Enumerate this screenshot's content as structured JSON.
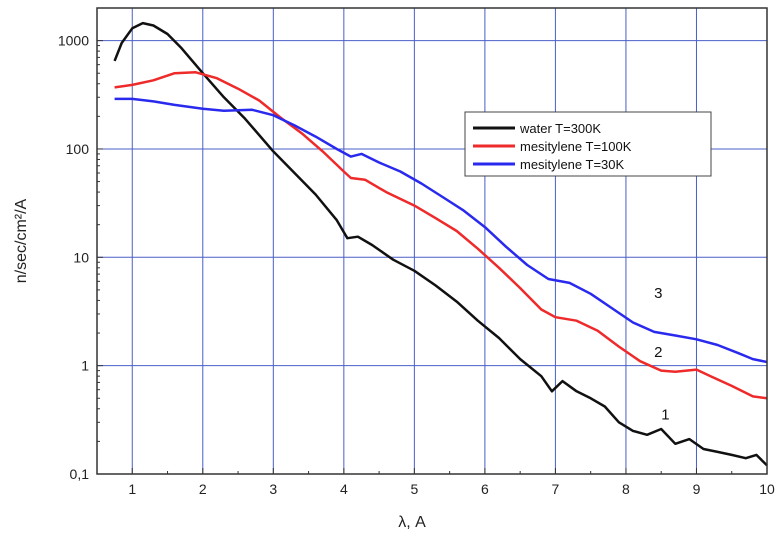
{
  "chart_data": {
    "type": "line",
    "xlabel": "λ, A",
    "ylabel": "n/sec/cm²/A",
    "xlim": [
      0.5,
      10
    ],
    "ylim": [
      0.1,
      2000
    ],
    "yscale": "log",
    "grid": true,
    "legend_position": "top-right",
    "x_ticks": [
      1,
      2,
      3,
      4,
      5,
      6,
      7,
      8,
      9,
      10
    ],
    "y_ticks": [
      {
        "value": 0.1,
        "label": "0,1"
      },
      {
        "value": 1,
        "label": "1"
      },
      {
        "value": 10,
        "label": "10"
      },
      {
        "value": 100,
        "label": "100"
      },
      {
        "value": 1000,
        "label": "1000"
      }
    ],
    "series": [
      {
        "name": "water T=300K",
        "color": "#111111",
        "curve_label": "1",
        "label_at": [
          8.5,
          0.32
        ],
        "points": [
          [
            0.75,
            650
          ],
          [
            0.85,
            950
          ],
          [
            1.0,
            1300
          ],
          [
            1.15,
            1450
          ],
          [
            1.3,
            1380
          ],
          [
            1.5,
            1150
          ],
          [
            1.7,
            850
          ],
          [
            2.0,
            500
          ],
          [
            2.3,
            300
          ],
          [
            2.6,
            190
          ],
          [
            3.0,
            95
          ],
          [
            3.3,
            60
          ],
          [
            3.6,
            38
          ],
          [
            3.9,
            22
          ],
          [
            4.05,
            15
          ],
          [
            4.2,
            15.5
          ],
          [
            4.4,
            13
          ],
          [
            4.7,
            9.5
          ],
          [
            5.0,
            7.5
          ],
          [
            5.3,
            5.5
          ],
          [
            5.6,
            3.9
          ],
          [
            5.9,
            2.6
          ],
          [
            6.2,
            1.8
          ],
          [
            6.5,
            1.15
          ],
          [
            6.8,
            0.8
          ],
          [
            6.95,
            0.58
          ],
          [
            7.1,
            0.72
          ],
          [
            7.3,
            0.58
          ],
          [
            7.5,
            0.5
          ],
          [
            7.7,
            0.42
          ],
          [
            7.9,
            0.3
          ],
          [
            8.1,
            0.25
          ],
          [
            8.3,
            0.23
          ],
          [
            8.5,
            0.26
          ],
          [
            8.7,
            0.19
          ],
          [
            8.9,
            0.21
          ],
          [
            9.1,
            0.17
          ],
          [
            9.3,
            0.16
          ],
          [
            9.5,
            0.15
          ],
          [
            9.7,
            0.14
          ],
          [
            9.85,
            0.15
          ],
          [
            10.0,
            0.12
          ]
        ]
      },
      {
        "name": "mesitylene T=100K",
        "color": "#ee2a2a",
        "curve_label": "2",
        "label_at": [
          8.4,
          1.2
        ],
        "points": [
          [
            0.75,
            370
          ],
          [
            1.0,
            390
          ],
          [
            1.3,
            430
          ],
          [
            1.6,
            500
          ],
          [
            1.9,
            510
          ],
          [
            2.2,
            450
          ],
          [
            2.5,
            360
          ],
          [
            2.8,
            280
          ],
          [
            3.1,
            195
          ],
          [
            3.4,
            140
          ],
          [
            3.7,
            95
          ],
          [
            4.0,
            62
          ],
          [
            4.1,
            54
          ],
          [
            4.3,
            52
          ],
          [
            4.6,
            40
          ],
          [
            5.0,
            30
          ],
          [
            5.3,
            23
          ],
          [
            5.6,
            17.5
          ],
          [
            5.9,
            12
          ],
          [
            6.2,
            8
          ],
          [
            6.5,
            5.2
          ],
          [
            6.8,
            3.3
          ],
          [
            7.0,
            2.8
          ],
          [
            7.3,
            2.6
          ],
          [
            7.6,
            2.1
          ],
          [
            7.9,
            1.5
          ],
          [
            8.2,
            1.1
          ],
          [
            8.5,
            0.9
          ],
          [
            8.7,
            0.88
          ],
          [
            9.0,
            0.92
          ],
          [
            9.2,
            0.8
          ],
          [
            9.5,
            0.65
          ],
          [
            9.8,
            0.52
          ],
          [
            10.0,
            0.5
          ]
        ]
      },
      {
        "name": "mesitylene T=30K",
        "color": "#2a2aee",
        "curve_label": "3",
        "label_at": [
          8.4,
          4.2
        ],
        "points": [
          [
            0.75,
            290
          ],
          [
            1.0,
            290
          ],
          [
            1.3,
            275
          ],
          [
            1.6,
            255
          ],
          [
            2.0,
            235
          ],
          [
            2.3,
            225
          ],
          [
            2.7,
            230
          ],
          [
            3.0,
            205
          ],
          [
            3.3,
            165
          ],
          [
            3.6,
            130
          ],
          [
            3.9,
            100
          ],
          [
            4.1,
            85
          ],
          [
            4.25,
            90
          ],
          [
            4.5,
            75
          ],
          [
            4.8,
            62
          ],
          [
            5.1,
            48
          ],
          [
            5.4,
            36
          ],
          [
            5.7,
            27
          ],
          [
            6.0,
            19
          ],
          [
            6.3,
            12.5
          ],
          [
            6.6,
            8.5
          ],
          [
            6.9,
            6.3
          ],
          [
            7.2,
            5.8
          ],
          [
            7.5,
            4.6
          ],
          [
            7.8,
            3.4
          ],
          [
            8.1,
            2.5
          ],
          [
            8.4,
            2.05
          ],
          [
            8.7,
            1.9
          ],
          [
            9.0,
            1.75
          ],
          [
            9.3,
            1.55
          ],
          [
            9.6,
            1.3
          ],
          [
            9.8,
            1.15
          ],
          [
            10.0,
            1.08
          ]
        ]
      }
    ]
  }
}
